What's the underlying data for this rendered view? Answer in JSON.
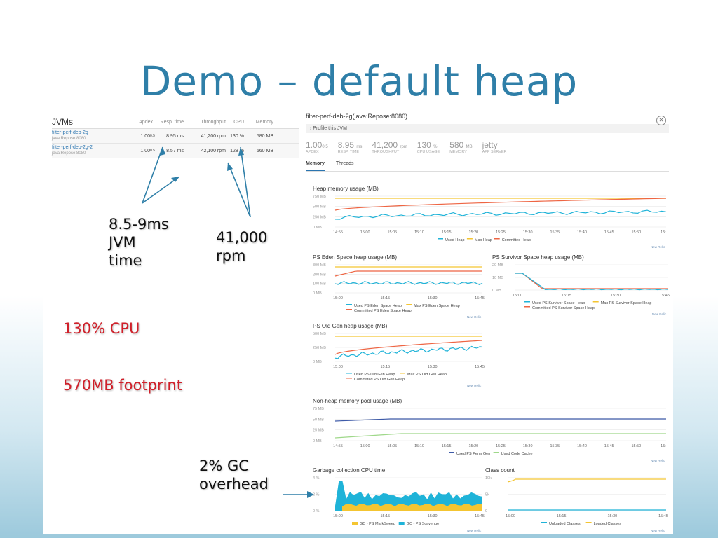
{
  "slide_title": "Demo – default heap",
  "jvms": {
    "title": "JVMs",
    "columns": [
      "Apdex",
      "Resp. time",
      "Throughput",
      "CPU",
      "Memory"
    ],
    "rows": [
      {
        "name": "filter-perf-deb-2g",
        "sub": "java:Repose:8080",
        "apdex": "1.00",
        "apdex_sub": "0.5",
        "resp": "8.95 ms",
        "throughput": "41,200 rpm",
        "cpu": "130 %",
        "memory": "580 MB"
      },
      {
        "name": "filter-perf-deb-2g-2",
        "sub": "java:Repose:8080",
        "apdex": "1.00",
        "apdex_sub": "0.5",
        "resp": "8.57 ms",
        "throughput": "42,100 rpm",
        "cpu": "128 %",
        "memory": "560 MB"
      }
    ]
  },
  "detail": {
    "title": "filter-perf-deb-2g(java:Repose:8080)",
    "profile": "Profile this JVM",
    "stats": [
      {
        "value": "1.00",
        "unit": "0.5",
        "label": "APDEX"
      },
      {
        "value": "8.95",
        "unit": "ms",
        "label": "RESP. TIME"
      },
      {
        "value": "41,200",
        "unit": "rpm",
        "label": "THROUGHPUT"
      },
      {
        "value": "130",
        "unit": "%",
        "label": "CPU USAGE"
      },
      {
        "value": "580",
        "unit": "MB",
        "label": "MEMORY"
      },
      {
        "value": "jetty",
        "unit": "",
        "label": "APP SERVER"
      }
    ],
    "tabs": [
      "Memory",
      "Threads"
    ]
  },
  "charts": {
    "heap": {
      "title": "Heap memory usage (MB)",
      "yticks": [
        "750 MB",
        "500 MB",
        "250 MB",
        "0 MB"
      ],
      "xticks": [
        "14:55",
        "15:00",
        "15:05",
        "15:10",
        "15:15",
        "15:20",
        "15:25",
        "15:30",
        "15:35",
        "15:40",
        "15:45",
        "15:50",
        "15:"
      ],
      "legend": [
        "Used Heap",
        "Max Heap",
        "Committed Heap"
      ]
    },
    "eden": {
      "title": "PS Eden Space heap usage (MB)",
      "yticks": [
        "300 MB",
        "200 MB",
        "100 MB",
        "0 MB"
      ],
      "xticks": [
        "15:00",
        "15:15",
        "15:30",
        "15:45"
      ],
      "legend": [
        "Used PS Eden Space Heap",
        "Max PS Eden Space Heap",
        "Committed PS Eden Space Heap"
      ]
    },
    "survivor": {
      "title": "PS Survivor Space heap usage (MB)",
      "yticks": [
        "20 MB",
        "10 MB",
        "0 MB"
      ],
      "xticks": [
        "15:00",
        "15:15",
        "15:30",
        "15:45"
      ],
      "legend": [
        "Used PS Survivor Space Heap",
        "Max PS Survivor Space Heap",
        "Committed PS Survivor Space Heap"
      ]
    },
    "oldgen": {
      "title": "PS Old Gen heap usage (MB)",
      "yticks": [
        "500 MB",
        "250 MB",
        "0 MB"
      ],
      "xticks": [
        "15:00",
        "15:15",
        "15:30",
        "15:45"
      ],
      "legend": [
        "Used PS Old Gen Heap",
        "Max PS Old Gen Heap",
        "Committed PS Old Gen Heap"
      ]
    },
    "nonheap": {
      "title": "Non-heap memory pool usage (MB)",
      "yticks": [
        "75 MB",
        "50 MB",
        "25 MB",
        "0 MB"
      ],
      "xticks": [
        "14:55",
        "15:00",
        "15:05",
        "15:10",
        "15:15",
        "15:20",
        "15:25",
        "15:30",
        "15:35",
        "15:40",
        "15:45",
        "15:50",
        "15:"
      ],
      "legend": [
        "Used PS Perm Gen",
        "Used Code Cache"
      ]
    },
    "gc": {
      "title": "Garbage collection CPU time",
      "yticks": [
        "4 %",
        "2 %",
        "0 %"
      ],
      "xticks": [
        "15:00",
        "15:15",
        "15:30",
        "15:45"
      ],
      "legend": [
        "GC - PS MarkSweep",
        "GC - PS Scavenge"
      ]
    },
    "classes": {
      "title": "Class count",
      "yticks": [
        "10k",
        "5k",
        "0"
      ],
      "xticks": [
        "15:00",
        "15:15",
        "15:30",
        "15:45"
      ],
      "legend": [
        "Unloaded Classes",
        "Loaded Classes"
      ]
    },
    "brand": "New Relic"
  },
  "annotations": {
    "jvm_time": [
      "8.5-9ms",
      "JVM",
      "time"
    ],
    "rpm": [
      "41,000",
      "rpm"
    ],
    "cpu": "130% CPU",
    "footprint": "570MB footprint",
    "gc": [
      "2% GC",
      "overhead"
    ]
  },
  "colors": {
    "used": "#1fb3d8",
    "max": "#f4c531",
    "committed": "#ee6543",
    "perm": "#3d5aa8",
    "code": "#9fd88a",
    "title": "#2f7fa8",
    "red_text": "#d0202a"
  }
}
